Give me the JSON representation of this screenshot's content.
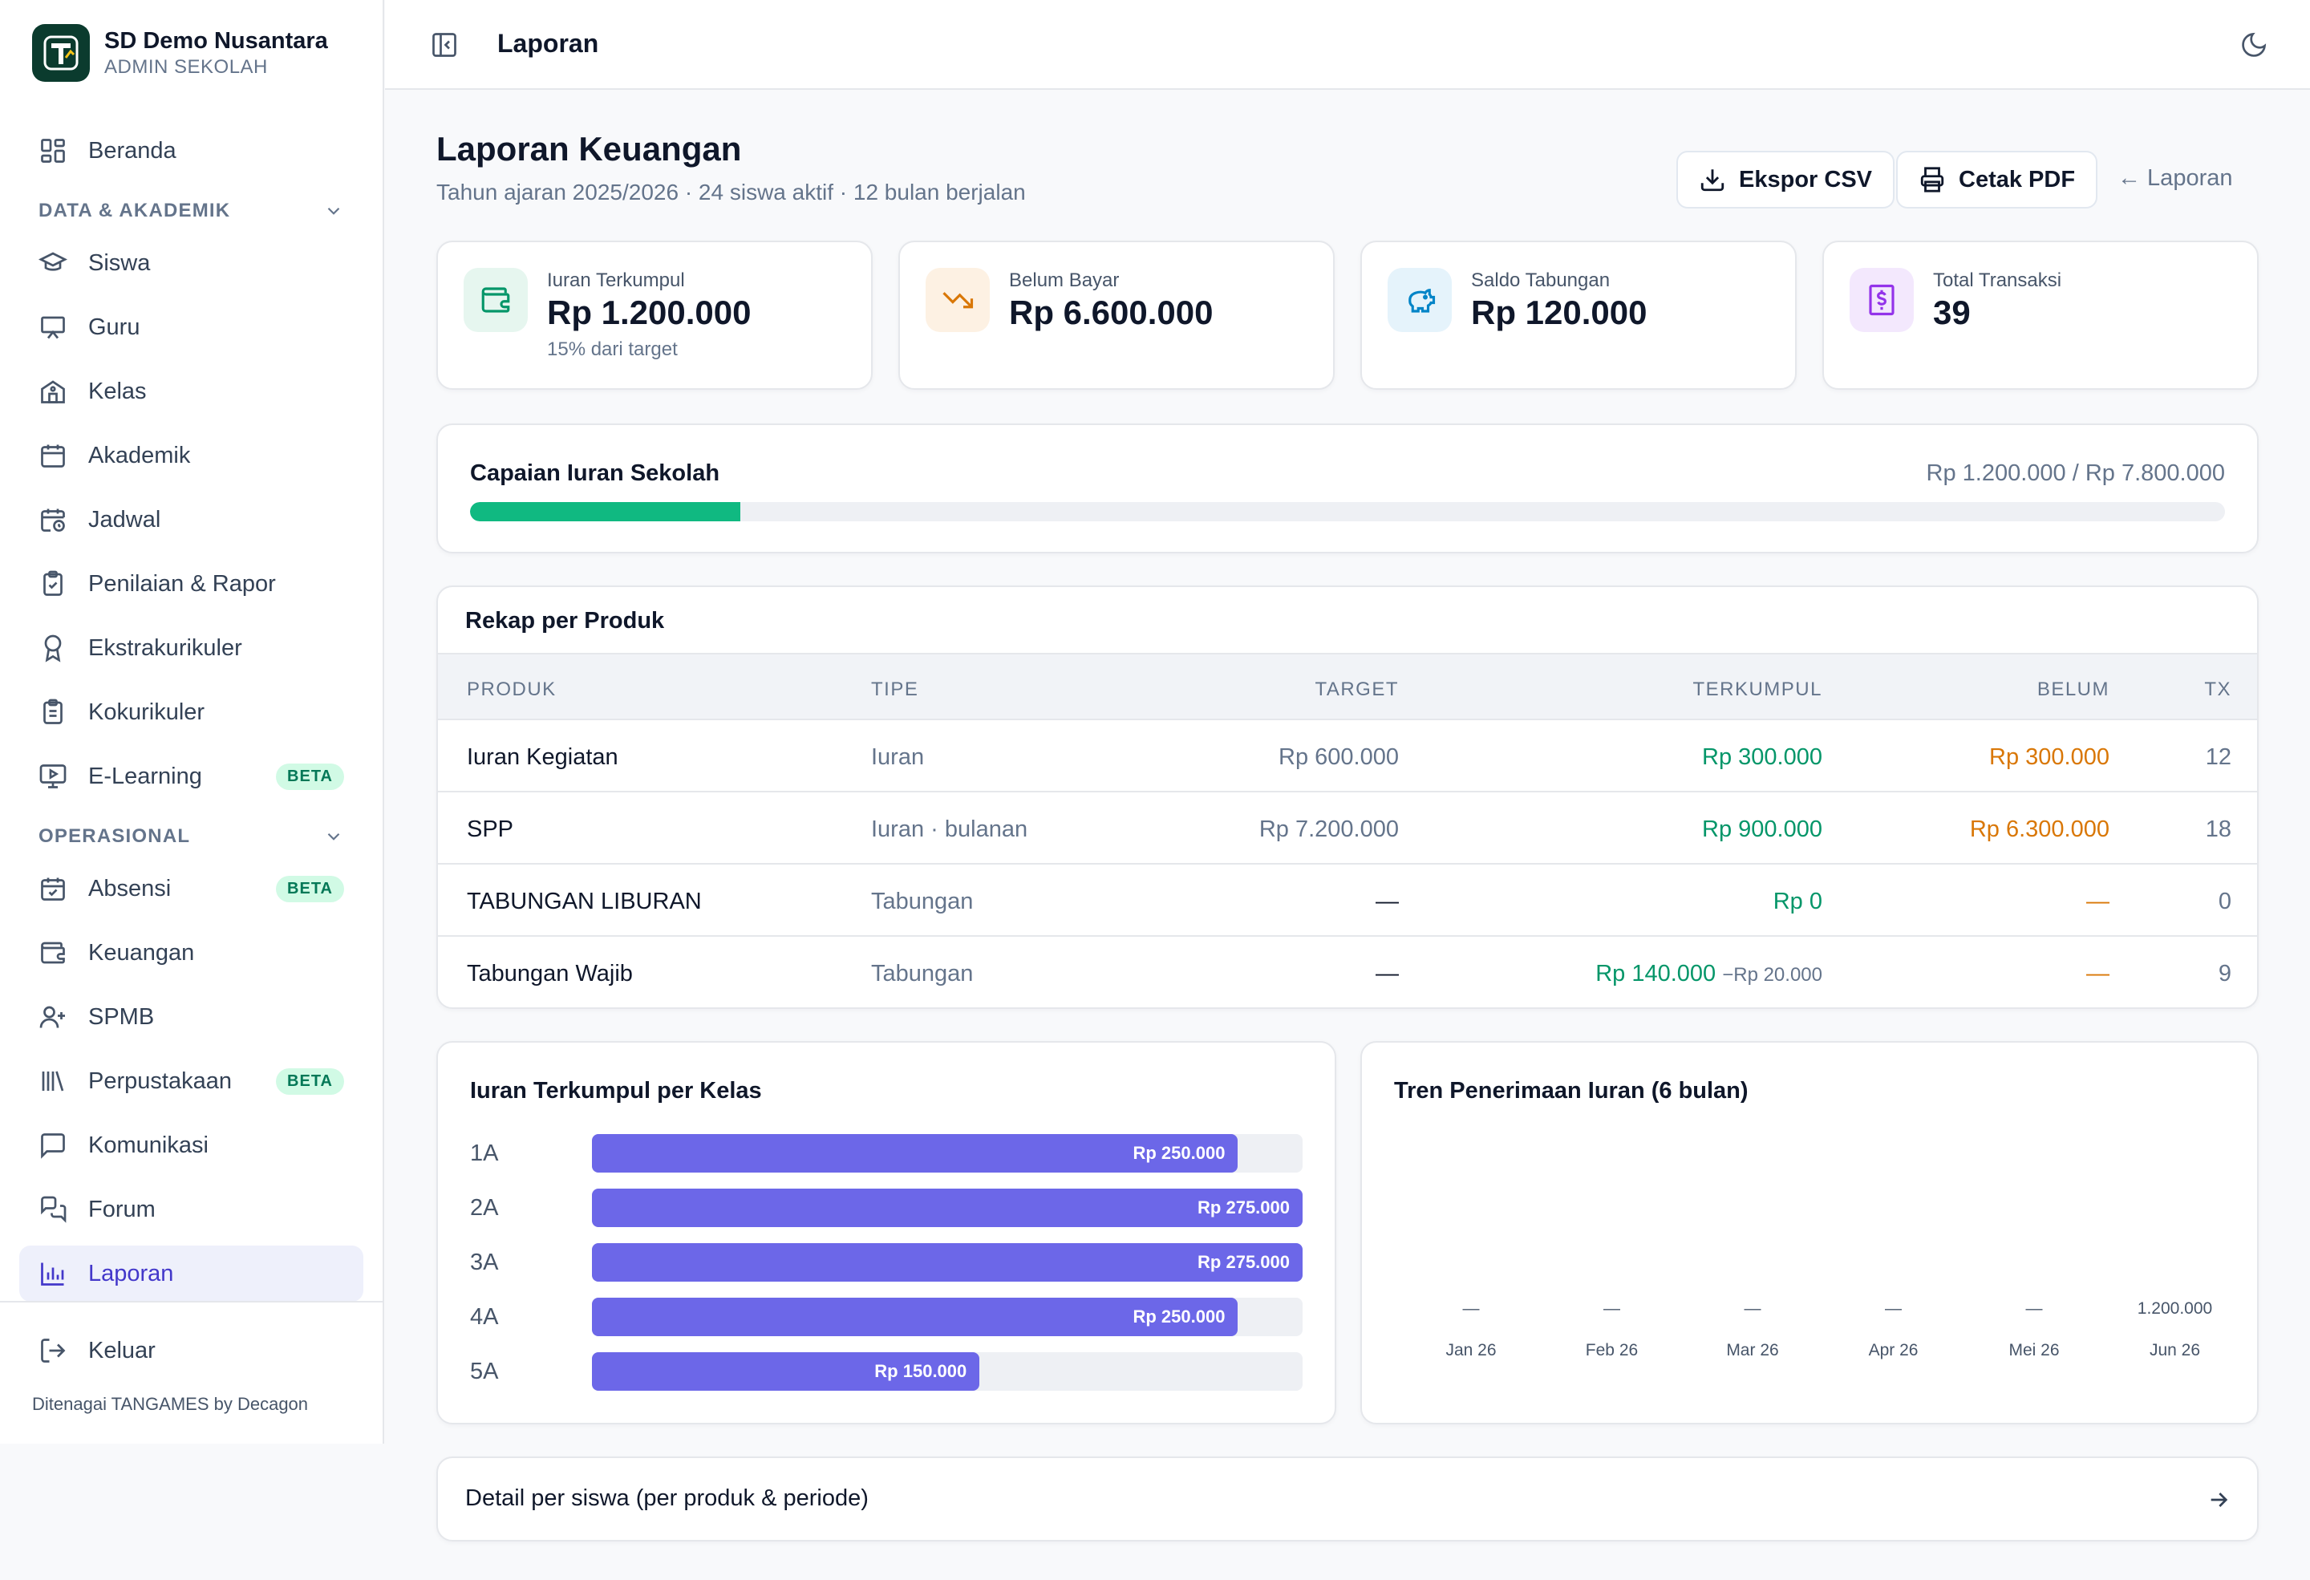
{
  "brand": {
    "name": "SD Demo Nusantara",
    "role": "ADMIN SEKOLAH"
  },
  "sidebar": {
    "home": "Beranda",
    "section_data": "DATA & AKADEMIK",
    "siswa": "Siswa",
    "guru": "Guru",
    "kelas": "Kelas",
    "akademik": "Akademik",
    "jadwal": "Jadwal",
    "penilaian": "Penilaian & Rapor",
    "ekskul": "Ekstrakurikuler",
    "kokurikuler": "Kokurikuler",
    "elearning": "E-Learning",
    "section_ops": "OPERASIONAL",
    "absensi": "Absensi",
    "keuangan": "Keuangan",
    "spmb": "SPMB",
    "perpustakaan": "Perpustakaan",
    "komunikasi": "Komunikasi",
    "forum": "Forum",
    "laporan": "Laporan",
    "keluar": "Keluar",
    "beta": "BETA",
    "footer": "Ditenagai TANGAMES by Decagon"
  },
  "topbar": {
    "title": "Laporan"
  },
  "page": {
    "title": "Laporan Keuangan",
    "subtitle": "Tahun ajaran 2025/2026 · 24 siswa aktif · 12 bulan berjalan",
    "btn_csv": "Ekspor CSV",
    "btn_pdf": "Cetak PDF",
    "back_link": "← Laporan"
  },
  "stats": [
    {
      "label": "Iuran Terkumpul",
      "value": "Rp 1.200.000",
      "note": "15% dari target",
      "icon": "wallet-icon",
      "color": "#059669",
      "bg": "#e6f6ef"
    },
    {
      "label": "Belum Bayar",
      "value": "Rp 6.600.000",
      "note": "",
      "icon": "trending-down-icon",
      "color": "#d97706",
      "bg": "#fdf1e3"
    },
    {
      "label": "Saldo Tabungan",
      "value": "Rp 120.000",
      "note": "",
      "icon": "piggy-bank-icon",
      "color": "#0284c7",
      "bg": "#e5f3fb"
    },
    {
      "label": "Total Transaksi",
      "value": "39",
      "note": "",
      "icon": "receipt-icon",
      "color": "#9333ea",
      "bg": "#f3e8fd"
    }
  ],
  "progress": {
    "title": "Capaian Iuran Sekolah",
    "summary": "Rp 1.200.000 / Rp 7.800.000",
    "fraction": 0.1538
  },
  "rekap": {
    "title": "Rekap per Produk",
    "headers": {
      "produk": "PRODUK",
      "tipe": "TIPE",
      "target": "TARGET",
      "terkumpul": "TERKUMPUL",
      "belum": "BELUM",
      "tx": "TX"
    },
    "rows": [
      {
        "produk": "Iuran Kegiatan",
        "tipe": "Iuran",
        "target": "Rp 600.000",
        "terkumpul": "Rp 300.000",
        "extra": "",
        "belum": "Rp 300.000",
        "tx": "12"
      },
      {
        "produk": "SPP",
        "tipe": "Iuran · bulanan",
        "target": "Rp 7.200.000",
        "terkumpul": "Rp 900.000",
        "extra": "",
        "belum": "Rp 6.300.000",
        "tx": "18"
      },
      {
        "produk": "TABUNGAN LIBURAN",
        "tipe": "Tabungan",
        "target": "—",
        "terkumpul": "Rp 0",
        "extra": "",
        "belum": "—",
        "tx": "0"
      },
      {
        "produk": "Tabungan Wajib",
        "tipe": "Tabungan",
        "target": "—",
        "terkumpul": "Rp 140.000",
        "extra": "−Rp 20.000",
        "belum": "—",
        "tx": "9"
      }
    ]
  },
  "chart_data": [
    {
      "type": "bar",
      "orientation": "horizontal",
      "title": "Iuran Terkumpul per Kelas",
      "categories": [
        "1A",
        "2A",
        "3A",
        "4A",
        "5A"
      ],
      "values": [
        250000,
        275000,
        275000,
        250000,
        150000
      ],
      "value_labels": [
        "Rp 250.000",
        "Rp 275.000",
        "Rp 275.000",
        "Rp 250.000",
        "Rp 150.000"
      ],
      "xlim": [
        0,
        275000
      ],
      "color": "#6c67e8"
    },
    {
      "type": "bar",
      "title": "Tren Penerimaan Iuran (6 bulan)",
      "categories": [
        "Jan 26",
        "Feb 26",
        "Mar 26",
        "Apr 26",
        "Mei 26",
        "Jun 26"
      ],
      "values": [
        0,
        0,
        0,
        0,
        0,
        1200000
      ],
      "value_labels": [
        "—",
        "—",
        "—",
        "—",
        "—",
        "1.200.000"
      ]
    }
  ],
  "detail": {
    "label": "Detail per siswa (per produk & periode)"
  }
}
